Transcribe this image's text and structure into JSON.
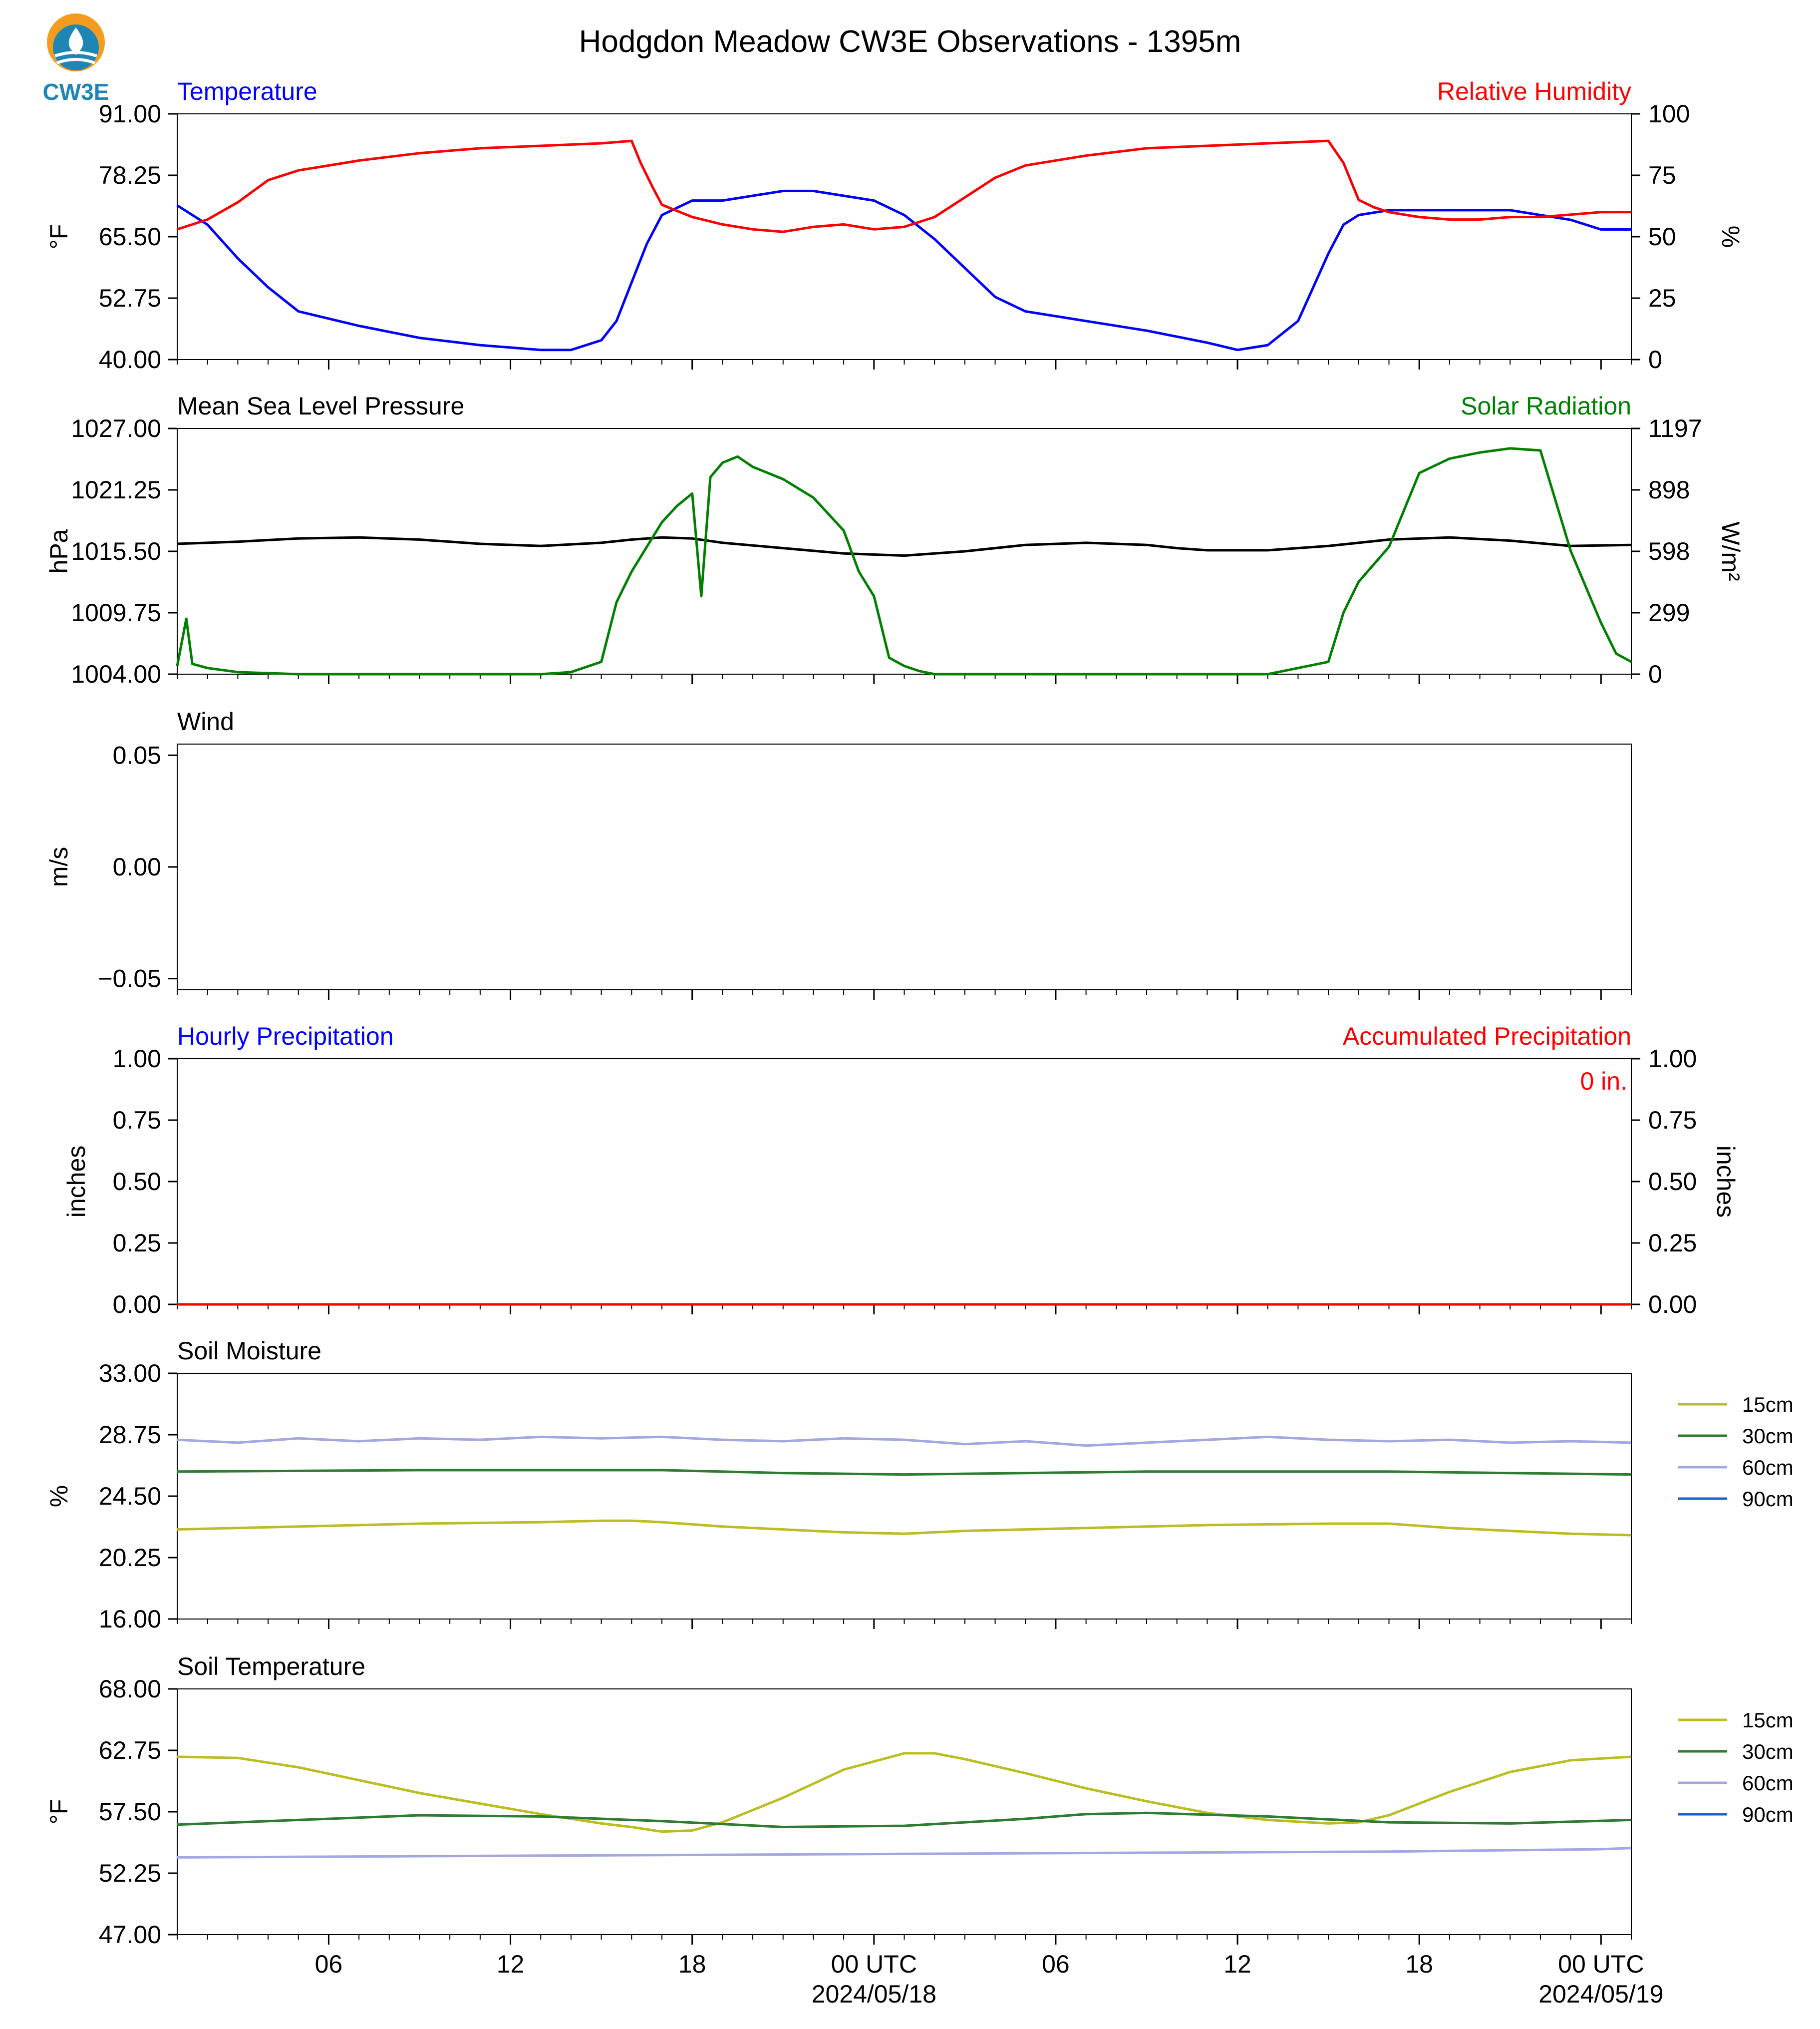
{
  "logo": {
    "text": "CW3E",
    "colors": {
      "sun": "#f39c1f",
      "water": "#1e86b5",
      "text": "#1e86b5"
    }
  },
  "title": "Hodgdon Meadow CW3E Observations - 1395m",
  "colors": {
    "blue": "#0000ff",
    "red": "#ff0000",
    "green": "#008000",
    "black": "#000000",
    "soil15": "#bcbd22",
    "soil30": "#2f7d32",
    "soil60": "#a4a8e2",
    "soil90": "#1f5fd6"
  },
  "x_axis": {
    "range_hours": [
      0.0,
      48.0
    ],
    "ticks": [
      {
        "hour": 5,
        "label": "06",
        "sub": ""
      },
      {
        "hour": 11,
        "label": "12",
        "sub": ""
      },
      {
        "hour": 17,
        "label": "18",
        "sub": ""
      },
      {
        "hour": 23,
        "label": "00 UTC",
        "sub": "2024/05/18"
      },
      {
        "hour": 29,
        "label": "06",
        "sub": ""
      },
      {
        "hour": 35,
        "label": "12",
        "sub": ""
      },
      {
        "hour": 41,
        "label": "18",
        "sub": ""
      },
      {
        "hour": 47,
        "label": "00 UTC",
        "sub": "2024/05/19"
      }
    ]
  },
  "chart_data": [
    {
      "type": "line",
      "title_left": "Temperature",
      "title_right": "Relative Humidity",
      "ylabel": "°F",
      "ylabel_right": "%",
      "ylim": [
        40.0,
        91.0
      ],
      "yticks": [
        "91.00",
        "78.25",
        "65.50",
        "52.75",
        "40.00"
      ],
      "ylim_right": [
        0,
        100
      ],
      "yticks_right": [
        "100",
        "75",
        "50",
        "25",
        "0"
      ],
      "series": [
        {
          "name": "Temperature",
          "axis": "left",
          "color": "#0000ff",
          "x": [
            0,
            1,
            2,
            3,
            4,
            6,
            8,
            10,
            12,
            13,
            14,
            14.5,
            15,
            15.5,
            16,
            17,
            18,
            19,
            20,
            21,
            22,
            23,
            24,
            25,
            26,
            27,
            28,
            30,
            32,
            34,
            35,
            36,
            37,
            37.5,
            38,
            38.5,
            39,
            40,
            41,
            42,
            43,
            44,
            45,
            46,
            47,
            48
          ],
          "y": [
            72,
            68,
            61,
            55,
            50,
            47,
            44.5,
            43,
            42,
            42,
            44,
            48,
            56,
            64,
            70,
            73,
            73,
            74,
            75,
            75,
            74,
            73,
            70,
            65,
            59,
            53,
            50,
            48,
            46,
            43.5,
            42,
            43,
            48,
            55,
            62,
            68,
            70,
            71,
            71,
            71,
            71,
            71,
            70,
            69,
            67,
            67
          ]
        },
        {
          "name": "Relative Humidity",
          "axis": "right",
          "color": "#ff0000",
          "x": [
            0,
            1,
            2,
            3,
            4,
            6,
            8,
            10,
            12,
            14,
            15,
            15.3,
            15.7,
            16,
            17,
            18,
            19,
            20,
            21,
            22,
            23,
            24,
            25,
            26,
            27,
            28,
            30,
            32,
            34,
            36,
            38,
            38.5,
            39,
            39.5,
            40,
            41,
            42,
            43,
            44,
            45,
            46,
            47,
            48
          ],
          "y": [
            53,
            57,
            64,
            73,
            77,
            81,
            84,
            86,
            87,
            88,
            89,
            80,
            70,
            63,
            58,
            55,
            53,
            52,
            54,
            55,
            53,
            54,
            58,
            66,
            74,
            79,
            83,
            86,
            87,
            88,
            89,
            80,
            65,
            62,
            60,
            58,
            57,
            57,
            58,
            58,
            59,
            60,
            60
          ]
        }
      ]
    },
    {
      "type": "line",
      "title_left": "Mean Sea Level Pressure",
      "title_right": "Solar Radiation",
      "ylabel": "hPa",
      "ylabel_right": "W/m²",
      "ylim": [
        1004.0,
        1027.0
      ],
      "yticks": [
        "1027.00",
        "1021.25",
        "1015.50",
        "1009.75",
        "1004.00"
      ],
      "ylim_right": [
        0,
        1197
      ],
      "yticks_right": [
        "1197",
        "898",
        "598",
        "299",
        "0"
      ],
      "series": [
        {
          "name": "Mean Sea Level Pressure",
          "axis": "left",
          "color": "#000000",
          "x": [
            0,
            2,
            4,
            6,
            8,
            10,
            12,
            14,
            15,
            16,
            17,
            18,
            20,
            22,
            24,
            26,
            28,
            30,
            32,
            33,
            34,
            36,
            38,
            40,
            42,
            44,
            46,
            48
          ],
          "y": [
            1016.2,
            1016.4,
            1016.7,
            1016.8,
            1016.6,
            1016.2,
            1016.0,
            1016.3,
            1016.6,
            1016.8,
            1016.7,
            1016.3,
            1015.8,
            1015.3,
            1015.1,
            1015.5,
            1016.1,
            1016.3,
            1016.1,
            1015.8,
            1015.6,
            1015.6,
            1016.0,
            1016.6,
            1016.8,
            1016.5,
            1016.0,
            1016.1
          ]
        },
        {
          "name": "Solar Radiation",
          "axis": "right",
          "color": "#008000",
          "x": [
            0,
            0.3,
            0.5,
            1,
            2,
            4,
            8,
            12,
            13,
            14,
            14.5,
            15,
            16,
            16.5,
            17,
            17.3,
            17.6,
            18,
            18.5,
            19,
            20,
            21,
            22,
            22.5,
            23,
            23.5,
            24,
            24.5,
            25,
            26,
            28,
            32,
            36,
            37,
            38,
            38.5,
            39,
            40,
            41,
            42,
            43,
            44,
            45,
            46,
            47,
            47.5,
            48
          ],
          "y": [
            40,
            270,
            50,
            30,
            10,
            0,
            0,
            0,
            10,
            60,
            350,
            500,
            740,
            820,
            880,
            380,
            960,
            1030,
            1060,
            1010,
            950,
            860,
            700,
            500,
            380,
            80,
            40,
            15,
            0,
            0,
            0,
            0,
            0,
            30,
            60,
            300,
            450,
            620,
            980,
            1050,
            1080,
            1100,
            1090,
            600,
            250,
            100,
            60
          ]
        }
      ]
    },
    {
      "type": "line",
      "title_left": "Wind",
      "title_right": "",
      "ylabel": "m/s",
      "ylabel_right": "",
      "ylim": [
        -0.055,
        0.055
      ],
      "yticks": [
        "0.05",
        "0.00",
        "−0.05"
      ],
      "ytick_values": [
        0.05,
        0.0,
        -0.05
      ],
      "series": []
    },
    {
      "type": "line",
      "title_left": "Hourly Precipitation",
      "title_right": "Accumulated Precipitation",
      "annotation": "0 in.",
      "ylabel": "inches",
      "ylabel_right": "inches",
      "ylim": [
        0.0,
        1.0
      ],
      "yticks": [
        "1.00",
        "0.75",
        "0.50",
        "0.25",
        "0.00"
      ],
      "ylim_right": [
        0.0,
        1.0
      ],
      "yticks_right": [
        "1.00",
        "0.75",
        "0.50",
        "0.25",
        "0.00"
      ],
      "series": [
        {
          "name": "Accumulated Precipitation",
          "axis": "right",
          "color": "#ff0000",
          "x": [
            0,
            48
          ],
          "y": [
            0,
            0
          ]
        }
      ]
    },
    {
      "type": "line",
      "title_left": "Soil Moisture",
      "title_right": "",
      "ylabel": "%",
      "ylabel_right": "",
      "ylim": [
        16.0,
        33.0
      ],
      "yticks": [
        "33.00",
        "28.75",
        "24.50",
        "20.25",
        "16.00"
      ],
      "legend": [
        "15cm",
        "30cm",
        "60cm",
        "90cm"
      ],
      "series": [
        {
          "name": "15cm",
          "color": "#bcbd22",
          "x": [
            0,
            4,
            8,
            12,
            14,
            15,
            16,
            18,
            20,
            22,
            24,
            26,
            30,
            34,
            38,
            40,
            42,
            44,
            46,
            48
          ],
          "y": [
            22.2,
            22.4,
            22.6,
            22.7,
            22.8,
            22.8,
            22.7,
            22.4,
            22.2,
            22.0,
            21.9,
            22.1,
            22.3,
            22.5,
            22.6,
            22.6,
            22.3,
            22.1,
            21.9,
            21.8
          ]
        },
        {
          "name": "30cm",
          "color": "#2f7d32",
          "x": [
            0,
            8,
            16,
            20,
            24,
            28,
            32,
            36,
            40,
            44,
            48
          ],
          "y": [
            26.2,
            26.3,
            26.3,
            26.1,
            26.0,
            26.1,
            26.2,
            26.2,
            26.2,
            26.1,
            26.0
          ]
        },
        {
          "name": "60cm",
          "color": "#a4a8e2",
          "x": [
            0,
            2,
            4,
            6,
            8,
            10,
            12,
            14,
            16,
            18,
            20,
            22,
            24,
            26,
            28,
            30,
            32,
            34,
            36,
            38,
            40,
            42,
            44,
            46,
            48
          ],
          "y": [
            28.4,
            28.2,
            28.5,
            28.3,
            28.5,
            28.4,
            28.6,
            28.5,
            28.6,
            28.4,
            28.3,
            28.5,
            28.4,
            28.1,
            28.3,
            28.0,
            28.2,
            28.4,
            28.6,
            28.4,
            28.3,
            28.4,
            28.2,
            28.3,
            28.2
          ]
        },
        {
          "name": "90cm",
          "color": "#1f5fd6",
          "x": [],
          "y": []
        }
      ]
    },
    {
      "type": "line",
      "title_left": "Soil Temperature",
      "title_right": "",
      "ylabel": "°F",
      "ylabel_right": "",
      "ylim": [
        47.0,
        68.0
      ],
      "yticks": [
        "68.00",
        "62.75",
        "57.50",
        "52.25",
        "47.00"
      ],
      "legend": [
        "15cm",
        "30cm",
        "60cm",
        "90cm"
      ],
      "series": [
        {
          "name": "15cm",
          "color": "#bcbd22",
          "x": [
            0,
            2,
            4,
            6,
            8,
            10,
            12,
            14,
            15,
            16,
            17,
            18,
            20,
            22,
            24,
            25,
            26,
            28,
            30,
            32,
            34,
            36,
            38,
            39,
            40,
            41,
            42,
            44,
            46,
            48
          ],
          "y": [
            62.2,
            62.1,
            61.3,
            60.2,
            59.1,
            58.2,
            57.3,
            56.5,
            56.2,
            55.8,
            55.9,
            56.6,
            58.7,
            61.1,
            62.5,
            62.5,
            62.0,
            60.8,
            59.5,
            58.4,
            57.4,
            56.8,
            56.5,
            56.6,
            57.2,
            58.2,
            59.2,
            60.9,
            61.9,
            62.2
          ]
        },
        {
          "name": "30cm",
          "color": "#2f7d32",
          "x": [
            0,
            4,
            8,
            12,
            16,
            20,
            24,
            28,
            30,
            32,
            36,
            40,
            44,
            48
          ],
          "y": [
            56.4,
            56.8,
            57.2,
            57.1,
            56.7,
            56.2,
            56.3,
            56.9,
            57.3,
            57.4,
            57.1,
            56.6,
            56.5,
            56.8
          ]
        },
        {
          "name": "60cm",
          "color": "#a4a8e2",
          "x": [
            0,
            8,
            16,
            24,
            32,
            40,
            47,
            48
          ],
          "y": [
            53.6,
            53.7,
            53.8,
            53.9,
            54.0,
            54.1,
            54.3,
            54.4
          ]
        },
        {
          "name": "90cm",
          "color": "#1f5fd6",
          "x": [],
          "y": []
        }
      ]
    }
  ]
}
